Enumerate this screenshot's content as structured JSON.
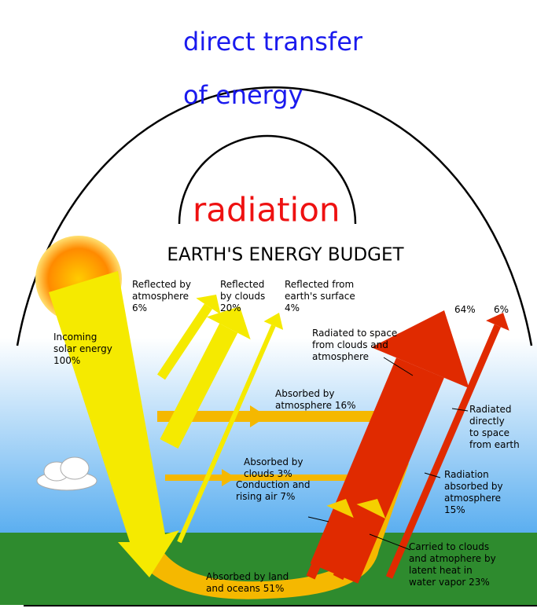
{
  "heading": {
    "transfer": [
      "direct transfer",
      "of energy"
    ],
    "radiation": "radiation"
  },
  "diagram": {
    "title": "EARTH'S ENERGY BUDGET",
    "labels": [
      {
        "lines": [
          "Reflected by",
          "atmosphere",
          "6%"
        ]
      },
      {
        "lines": [
          "Reflected",
          "by clouds",
          "20%"
        ]
      },
      {
        "lines": [
          "Reflected from",
          "earth's surface",
          "4%"
        ]
      },
      {
        "lines": [
          "64%"
        ]
      },
      {
        "lines": [
          "6%"
        ]
      },
      {
        "lines": [
          "Incoming",
          "solar energy",
          "100%"
        ]
      },
      {
        "lines": [
          "Radiated to space",
          "from clouds and",
          "atmosphere"
        ]
      },
      {
        "lines": [
          "Absorbed by",
          "atmosphere 16%"
        ]
      },
      {
        "lines": [
          "Radiated",
          "directly",
          "to space",
          "from earth"
        ]
      },
      {
        "lines": [
          "Absorbed by",
          "clouds 3%"
        ]
      },
      {
        "lines": [
          "Radiation",
          "absorbed by",
          "atmosphere",
          "15%"
        ]
      },
      {
        "lines": [
          "Conduction and",
          "rising air 7%"
        ]
      },
      {
        "lines": [
          "Carried to clouds",
          "and atmophere by",
          "latent heat in",
          "water vapor 23%"
        ]
      },
      {
        "lines": [
          "Absorbed by land",
          "and oceans 51%"
        ]
      }
    ]
  }
}
